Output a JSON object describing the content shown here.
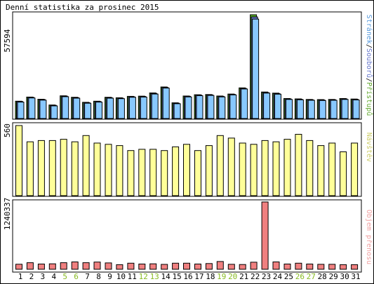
{
  "chart_data": {
    "title": "Denní statistika za prosinec 2015",
    "type": "bar",
    "days": [
      "1",
      "2",
      "3",
      "4",
      "5",
      "6",
      "7",
      "8",
      "9",
      "10",
      "11",
      "12",
      "13",
      "14",
      "15",
      "16",
      "17",
      "18",
      "19",
      "20",
      "21",
      "22",
      "23",
      "24",
      "25",
      "26",
      "27",
      "28",
      "29",
      "30",
      "31"
    ],
    "weekend_days": [
      "5",
      "6",
      "12",
      "13",
      "19",
      "20",
      "26",
      "27"
    ],
    "colors": {
      "normal_day_label": "#000000",
      "weekend_day_label": "#88bb22",
      "pages": "#88c8ff",
      "files": "#6677cc",
      "hits": "#55aa22",
      "visits": "#ffff99",
      "traffic": "#f08080",
      "pages_legend": "#5599dd",
      "files_legend": "#6677cc",
      "hits_legend": "#66aa33",
      "visits_legend": "#cccc66",
      "traffic_legend": "#f0a0a0"
    },
    "panel_top": {
      "ymax_label": "57594",
      "ylim": [
        0,
        57594
      ],
      "legend": {
        "pages": "Stránek",
        "files": "Souborů",
        "hits": "Přístupů",
        "sep": "/"
      },
      "hits": [
        9600,
        11900,
        10700,
        7500,
        12600,
        11800,
        9000,
        9600,
        11800,
        11500,
        12300,
        12400,
        14200,
        17500,
        8700,
        12500,
        13200,
        13300,
        12500,
        13600,
        17000,
        57594,
        14700,
        14100,
        11100,
        10900,
        10600,
        10500,
        10600,
        11100,
        10800
      ],
      "files": [
        9400,
        11700,
        10500,
        7300,
        12400,
        11600,
        8800,
        9400,
        11600,
        11300,
        12100,
        12200,
        13900,
        17200,
        8500,
        12300,
        13000,
        13100,
        12300,
        13400,
        16700,
        56400,
        14400,
        13800,
        10900,
        10700,
        10400,
        10300,
        10400,
        10900,
        10600
      ],
      "pages": [
        9100,
        11400,
        10200,
        7000,
        12100,
        11300,
        8500,
        9100,
        11300,
        11000,
        11800,
        11900,
        13600,
        16900,
        8200,
        12000,
        12700,
        12800,
        12000,
        13100,
        16400,
        55200,
        14100,
        13500,
        10600,
        10400,
        10100,
        10000,
        10100,
        10600,
        10300
      ]
    },
    "panel_mid": {
      "ymax_label": "560",
      "ylim": [
        0,
        560
      ],
      "legend": "Návštěv",
      "visits": [
        560,
        430,
        440,
        440,
        450,
        430,
        480,
        420,
        410,
        400,
        360,
        370,
        370,
        360,
        390,
        410,
        360,
        400,
        480,
        460,
        420,
        410,
        440,
        430,
        450,
        490,
        440,
        400,
        420,
        350,
        420
      ]
    },
    "panel_bot": {
      "ymax_label": "1240337",
      "ylim": [
        0,
        1240337
      ],
      "legend": "Objem přenosu",
      "traffic": [
        93000,
        122000,
        97000,
        101000,
        122000,
        136000,
        122000,
        133000,
        118000,
        85000,
        112000,
        97000,
        101000,
        91000,
        112000,
        112000,
        97000,
        106000,
        143000,
        92000,
        88000,
        131000,
        1240337,
        136000,
        97000,
        112000,
        97000,
        92000,
        92000,
        85000,
        85000
      ]
    }
  }
}
